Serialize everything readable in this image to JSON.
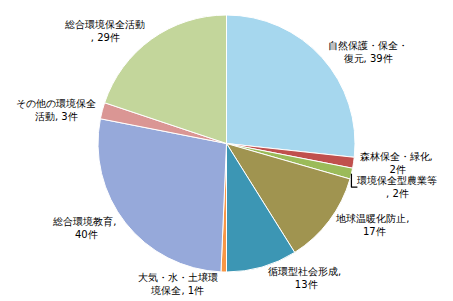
{
  "chart_data": {
    "type": "pie",
    "categories": [
      "自然保護・保全・復元",
      "森林保全・緑化",
      "環境保全型農業等",
      "地球温暖化防止",
      "循環型社会形成",
      "大気・水・土壌環境保全",
      "総合環境教育",
      "その他の環境保全活動",
      "総合環境保全活動"
    ],
    "values": [
      39,
      2,
      2,
      17,
      13,
      1,
      40,
      3,
      29
    ],
    "value_labels": [
      "自然保護・保全・復元, 39件",
      "森林保全・緑化, 2件",
      "環境保全型農業等, 2件",
      "地球温暖化防止, 17件",
      "循環型社会形成, 13件",
      "大気・水・土壌環境保全, 1件",
      "総合環境教育, 40件",
      "その他の環境保全活動, 3件",
      "総合環境保全活動, 29件"
    ],
    "colors": [
      "#a6d7ee",
      "#c0504d",
      "#9bbb59",
      "#a09450",
      "#3c96b4",
      "#f79646",
      "#96a9da",
      "#da9694",
      "#c3d69b"
    ],
    "data_labels": true
  }
}
